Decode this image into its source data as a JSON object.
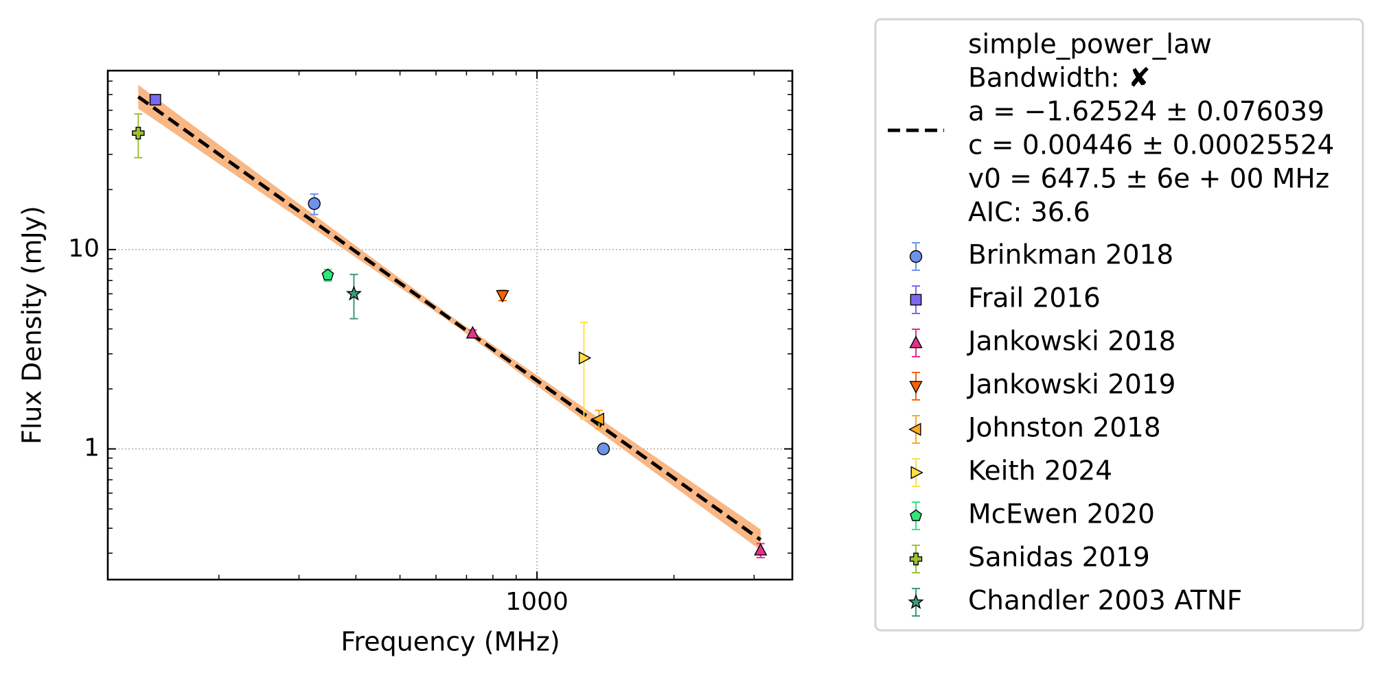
{
  "chart_data": {
    "type": "scatter",
    "x_label": "Frequency (MHz)",
    "y_label": "Flux Density (mJy)",
    "xlog": true,
    "ylog": true,
    "grid": true,
    "xlim": [
      114,
      3640
    ],
    "ylim": [
      0.221,
      79
    ],
    "xticks": [
      1000
    ],
    "yticks": [
      1,
      10
    ],
    "x_minor_ticks": [
      200,
      300,
      400,
      500,
      600,
      700,
      800,
      900,
      2000,
      3000
    ],
    "y_minor_ticks": [
      0.3,
      0.4,
      0.5,
      0.6,
      0.7,
      0.8,
      0.9,
      2,
      3,
      4,
      5,
      6,
      7,
      8,
      9,
      20,
      30,
      40,
      50,
      60,
      70
    ],
    "legend_position": "outside right",
    "fit": {
      "name": "simple_power_law",
      "legend_lines": [
        "Bandwidth: ✘",
        "a = −1.62524 ± 0.076039",
        "c = 0.00446 ± 0.00025524",
        "v0 = 647.5 ± 6e + 00 MHz",
        "AIC: 36.6"
      ],
      "color": "#000000",
      "band_color": "#f8b784",
      "x": [
        133,
        647.5,
        3100
      ],
      "values": [
        58.4,
        4.46,
        0.35
      ],
      "band_lower": [
        51,
        4.3,
        0.31
      ],
      "band_upper": [
        67,
        4.63,
        0.395
      ]
    },
    "series": [
      {
        "name": "Brinkman 2018",
        "color": "#6e93e8",
        "marker": "o",
        "x": [
          324,
          1400
        ],
        "values": [
          17,
          1.0
        ],
        "errors": [
          2,
          0.04
        ]
      },
      {
        "name": "Frail 2016",
        "color": "#7b68ee",
        "marker": "s",
        "x": [
          145
        ],
        "values": [
          56.5
        ],
        "errors": [
          3
        ]
      },
      {
        "name": "Jankowski 2018",
        "color": "#e0338a",
        "marker": "^",
        "x": [
          722,
          3100
        ],
        "values": [
          3.8,
          0.31
        ],
        "errors": [
          0.15,
          0.025
        ]
      },
      {
        "name": "Jankowski 2019",
        "color": "#ff6200",
        "marker": "v",
        "x": [
          840
        ],
        "values": [
          5.9
        ],
        "errors": [
          0.35
        ]
      },
      {
        "name": "Johnston 2018",
        "color": "#ffa91f",
        "marker": "<",
        "x": [
          1369
        ],
        "values": [
          1.41
        ],
        "errors": [
          0.15
        ]
      },
      {
        "name": "Keith 2024",
        "color": "#ffdf4a",
        "marker": ">",
        "x": [
          1268
        ],
        "values": [
          2.86
        ],
        "errors": [
          1.45
        ]
      },
      {
        "name": "McEwen 2020",
        "color": "#2ee87a",
        "marker": "p",
        "x": [
          347
        ],
        "values": [
          7.45
        ],
        "errors": [
          0.5
        ]
      },
      {
        "name": "Sanidas 2019",
        "color": "#9ac232",
        "marker": "P",
        "x": [
          133
        ],
        "values": [
          38.4
        ],
        "errors": [
          9.5
        ]
      },
      {
        "name": "Chandler 2003 ATNF",
        "color": "#3b9a82",
        "marker": "*",
        "x": [
          396
        ],
        "values": [
          6.0
        ],
        "errors": [
          1.5
        ]
      }
    ]
  }
}
